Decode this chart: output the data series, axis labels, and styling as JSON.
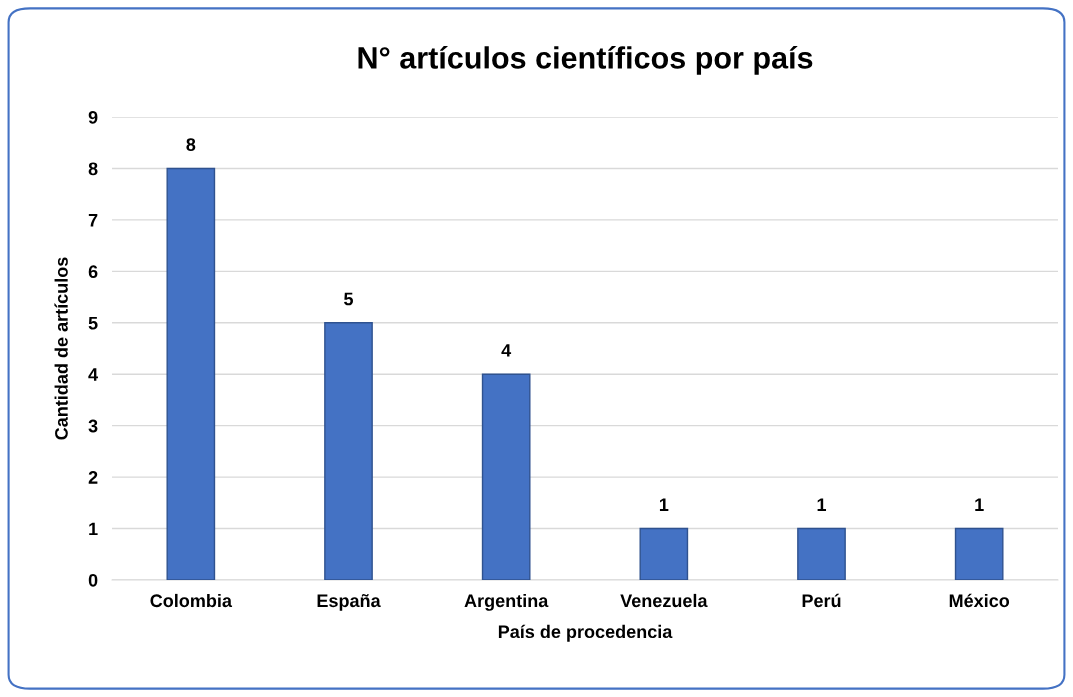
{
  "chart_data": {
    "type": "bar",
    "title": "N° artículos científicos por país",
    "xlabel": "País de procedencia",
    "ylabel": "Cantidad de artículos",
    "categories": [
      "Colombia",
      "España",
      "Argentina",
      "Venezuela",
      "Perú",
      "México"
    ],
    "values": [
      8,
      5,
      4,
      1,
      1,
      1
    ],
    "color": "#4472c4",
    "ylim": [
      0,
      9
    ],
    "yticks": [
      0,
      1,
      2,
      3,
      4,
      5,
      6,
      7,
      8,
      9
    ],
    "grid": "y",
    "data_labels": true,
    "legend": false
  }
}
